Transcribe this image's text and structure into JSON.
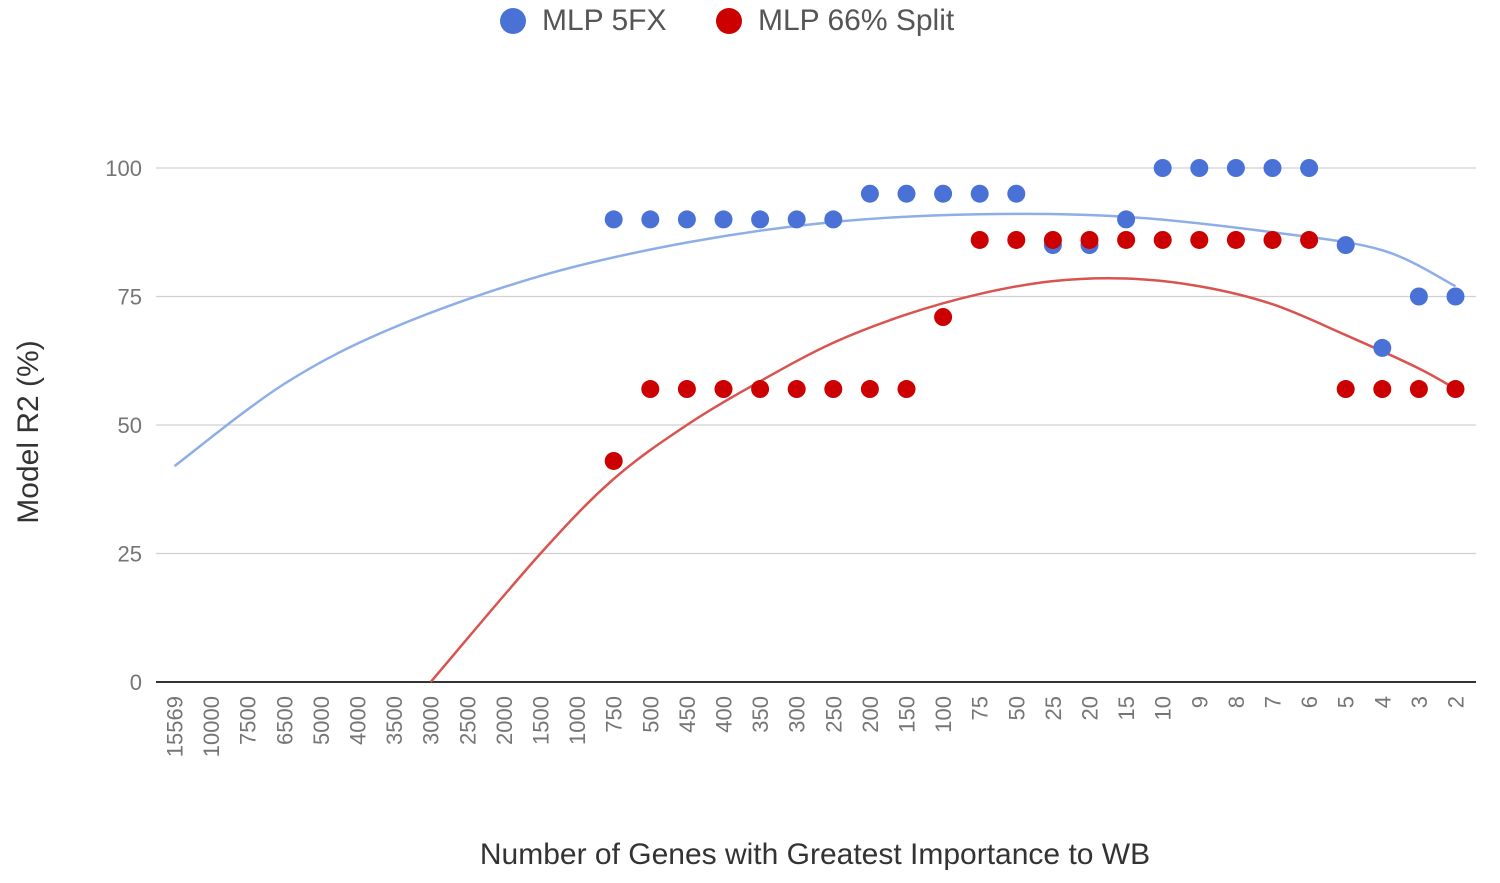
{
  "chart_data": {
    "type": "scatter",
    "title": "",
    "xlabel": "Number of Genes with Greatest Importance to WB",
    "ylabel": "Model R2 (%)",
    "ylim": [
      0,
      100
    ],
    "yticks": [
      "0",
      "25",
      "50",
      "75",
      "100"
    ],
    "categories": [
      "15569",
      "10000",
      "7500",
      "6500",
      "5000",
      "4000",
      "3500",
      "3000",
      "2500",
      "2000",
      "1500",
      "1000",
      "750",
      "500",
      "450",
      "400",
      "350",
      "300",
      "250",
      "200",
      "150",
      "100",
      "75",
      "50",
      "25",
      "20",
      "15",
      "10",
      "9",
      "8",
      "7",
      "6",
      "5",
      "4",
      "3",
      "2"
    ],
    "legend": {
      "position": "top"
    },
    "series": [
      {
        "name": "MLP 5FX",
        "color": "#4a72d6",
        "trendColor": "#8eaee8",
        "values": [
          null,
          null,
          null,
          null,
          null,
          null,
          null,
          null,
          null,
          null,
          null,
          null,
          90,
          90,
          90,
          90,
          90,
          90,
          90,
          95,
          95,
          95,
          95,
          95,
          85,
          85,
          90,
          100,
          100,
          100,
          100,
          100,
          85,
          65,
          75,
          75
        ],
        "trend": {
          "points": [
            [
              0,
              42
            ],
            [
              3,
              58
            ],
            [
              6,
              69
            ],
            [
              10,
              79
            ],
            [
              14,
              85.5
            ],
            [
              18,
              89.5
            ],
            [
              22,
              91
            ],
            [
              26,
              90.5
            ],
            [
              30,
              87.5
            ],
            [
              33,
              84
            ],
            [
              35,
              77
            ]
          ]
        }
      },
      {
        "name": "MLP 66% Split",
        "color": "#cc0000",
        "trendColor": "#d9534f",
        "values": [
          null,
          null,
          null,
          null,
          null,
          null,
          null,
          null,
          null,
          null,
          null,
          null,
          43,
          57,
          57,
          57,
          57,
          57,
          57,
          57,
          57,
          71,
          86,
          86,
          86,
          86,
          86,
          86,
          86,
          86,
          86,
          86,
          57,
          57,
          57,
          57
        ],
        "trend": {
          "points": [
            [
              7,
              0
            ],
            [
              10,
              25
            ],
            [
              12,
              39.5
            ],
            [
              14,
              50
            ],
            [
              16,
              58.5
            ],
            [
              18,
              66
            ],
            [
              20,
              71.5
            ],
            [
              22,
              75.5
            ],
            [
              24,
              78
            ],
            [
              26,
              78.5
            ],
            [
              28,
              77
            ],
            [
              30,
              73.5
            ],
            [
              32,
              67.5
            ],
            [
              34,
              61
            ],
            [
              35,
              57
            ]
          ]
        }
      }
    ]
  }
}
